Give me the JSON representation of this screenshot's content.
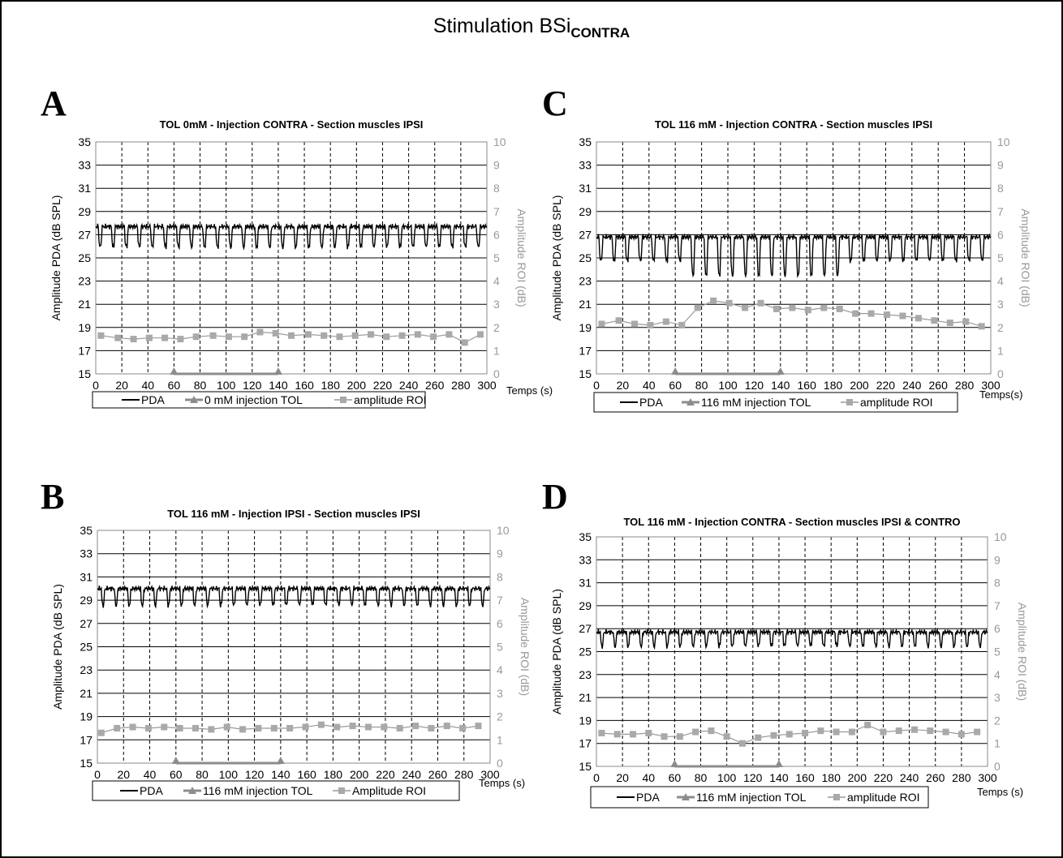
{
  "figure": {
    "title_main": "Stimulation BSi",
    "title_sub": "CONTRA"
  },
  "chart_data": [
    {
      "type": "line",
      "panel_letter": "A",
      "title": "TOL 0mM - Injection CONTRA - Section muscles IPSI",
      "xlabel": "Temps (s)",
      "ylabel_left": "Amplitude PDA (dB SPL)",
      "ylabel_right": "Amplitude ROI (dB)",
      "xlim": [
        0,
        300
      ],
      "xticks": [
        0,
        20,
        40,
        60,
        80,
        100,
        120,
        140,
        160,
        180,
        200,
        220,
        240,
        260,
        280,
        300
      ],
      "ylim_left": [
        15,
        35
      ],
      "yticks_left": [
        15,
        17,
        19,
        21,
        23,
        25,
        27,
        29,
        31,
        33,
        35
      ],
      "ylim_right": [
        0,
        10
      ],
      "yticks_right": [
        0,
        1,
        2,
        3,
        4,
        5,
        6,
        7,
        8,
        9,
        10
      ],
      "legend": [
        "PDA",
        "0 mM injection TOL",
        "amplitude ROI"
      ],
      "pda": {
        "baseline": 27.7,
        "dip": 26.0,
        "period": 10,
        "dip_width": 3.2,
        "offset": 2
      },
      "injection": {
        "x": [
          60,
          140
        ],
        "y": [
          0,
          0
        ]
      },
      "roi": {
        "x": [
          4,
          17,
          29,
          41,
          53,
          65,
          77,
          90,
          102,
          114,
          126,
          138,
          150,
          163,
          175,
          187,
          199,
          211,
          223,
          235,
          247,
          259,
          271,
          283,
          295
        ],
        "y": [
          1.65,
          1.55,
          1.5,
          1.55,
          1.55,
          1.5,
          1.6,
          1.65,
          1.6,
          1.6,
          1.8,
          1.75,
          1.65,
          1.7,
          1.65,
          1.6,
          1.65,
          1.7,
          1.6,
          1.65,
          1.7,
          1.6,
          1.7,
          1.35,
          1.7
        ]
      }
    },
    {
      "type": "line",
      "panel_letter": "B",
      "title": "TOL 116 mM - Injection IPSI - Section muscles IPSI",
      "xlabel": "Temps (s)",
      "ylabel_left": "Amplitude PDA (dB SPL)",
      "ylabel_right": "Amplitude ROI (dB)",
      "xlim": [
        0,
        300
      ],
      "xticks": [
        0,
        20,
        40,
        60,
        80,
        100,
        120,
        140,
        160,
        180,
        200,
        220,
        240,
        260,
        280,
        300
      ],
      "ylim_left": [
        15,
        35
      ],
      "yticks_left": [
        15,
        17,
        19,
        21,
        23,
        25,
        27,
        29,
        31,
        33,
        35
      ],
      "ylim_right": [
        0,
        10
      ],
      "yticks_right": [
        0,
        1,
        2,
        3,
        4,
        5,
        6,
        7,
        8,
        9,
        10
      ],
      "legend": [
        "PDA",
        "116 mM injection TOL",
        "Amplitude ROI"
      ],
      "pda": {
        "baseline": 30.0,
        "dip": 28.6,
        "period": 10,
        "dip_width": 3.0,
        "offset": 3
      },
      "injection": {
        "x": [
          60,
          140
        ],
        "y": [
          0,
          0
        ]
      },
      "roi": {
        "x": [
          3,
          15,
          27,
          39,
          51,
          63,
          75,
          87,
          99,
          111,
          123,
          135,
          147,
          159,
          171,
          183,
          195,
          207,
          219,
          231,
          243,
          255,
          267,
          279,
          291
        ],
        "y": [
          1.3,
          1.5,
          1.55,
          1.5,
          1.55,
          1.5,
          1.5,
          1.45,
          1.55,
          1.45,
          1.5,
          1.5,
          1.5,
          1.55,
          1.65,
          1.55,
          1.6,
          1.55,
          1.55,
          1.5,
          1.6,
          1.5,
          1.6,
          1.5,
          1.6
        ]
      }
    },
    {
      "type": "line",
      "panel_letter": "C",
      "title": "TOL 116 mM - Injection CONTRA - Section muscles IPSI",
      "xlabel": "Temps(s)",
      "ylabel_left": "Amplitude PDA (dB SPL)",
      "ylabel_right": "Amplitude ROI (dB)",
      "xlim": [
        0,
        300
      ],
      "xticks": [
        0,
        20,
        40,
        60,
        80,
        100,
        120,
        140,
        160,
        180,
        200,
        220,
        240,
        260,
        280,
        300
      ],
      "ylim_left": [
        15,
        35
      ],
      "yticks_left": [
        15,
        17,
        19,
        21,
        23,
        25,
        27,
        29,
        31,
        33,
        35
      ],
      "ylim_right": [
        0,
        10
      ],
      "yticks_right": [
        0,
        1,
        2,
        3,
        4,
        5,
        6,
        7,
        8,
        9,
        10
      ],
      "legend": [
        "PDA",
        "116 mM injection TOL",
        "amplitude ROI"
      ],
      "pda": {
        "baseline": 26.8,
        "dip": 24.8,
        "period": 10,
        "dip_width": 3.2,
        "offset": 2,
        "dip_deep": 23.6,
        "deep_from": 70,
        "deep_to": 190
      },
      "injection": {
        "x": [
          60,
          140
        ],
        "y": [
          0,
          0
        ]
      },
      "roi": {
        "x": [
          4,
          17,
          29,
          41,
          53,
          65,
          77,
          89,
          101,
          113,
          125,
          137,
          149,
          161,
          173,
          185,
          197,
          209,
          221,
          233,
          245,
          257,
          269,
          281,
          293
        ],
        "y": [
          2.15,
          2.3,
          2.15,
          2.1,
          2.25,
          2.1,
          2.85,
          3.15,
          3.05,
          2.85,
          3.05,
          2.8,
          2.85,
          2.75,
          2.85,
          2.8,
          2.6,
          2.6,
          2.55,
          2.5,
          2.4,
          2.3,
          2.2,
          2.25,
          2.05
        ]
      }
    },
    {
      "type": "line",
      "panel_letter": "D",
      "title": "TOL 116 mM - Injection CONTRA - Section muscles IPSI & CONTRO",
      "xlabel": "Temps (s)",
      "ylabel_left": "Amplitude PDA (dB SPL)",
      "ylabel_right": "Amplitude ROI (dB)",
      "xlim": [
        0,
        300
      ],
      "xticks": [
        0,
        20,
        40,
        60,
        80,
        100,
        120,
        140,
        160,
        180,
        200,
        220,
        240,
        260,
        280,
        300
      ],
      "ylim_left": [
        15,
        35
      ],
      "yticks_left": [
        15,
        17,
        19,
        21,
        23,
        25,
        27,
        29,
        31,
        33,
        35
      ],
      "ylim_right": [
        0,
        10
      ],
      "yticks_right": [
        0,
        1,
        2,
        3,
        4,
        5,
        6,
        7,
        8,
        9,
        10
      ],
      "legend": [
        "PDA",
        "116 mM injection TOL",
        "amplitude ROI"
      ],
      "pda": {
        "baseline": 26.7,
        "dip": 25.5,
        "period": 10,
        "dip_width": 3.0,
        "offset": 3
      },
      "injection": {
        "x": [
          60,
          140
        ],
        "y": [
          0,
          0
        ]
      },
      "roi": {
        "x": [
          4,
          16,
          28,
          40,
          52,
          64,
          76,
          88,
          100,
          112,
          124,
          136,
          148,
          160,
          172,
          184,
          196,
          208,
          220,
          232,
          244,
          256,
          268,
          280,
          292
        ],
        "y": [
          1.45,
          1.4,
          1.4,
          1.45,
          1.3,
          1.3,
          1.5,
          1.55,
          1.3,
          1.0,
          1.25,
          1.35,
          1.4,
          1.45,
          1.55,
          1.5,
          1.5,
          1.8,
          1.5,
          1.55,
          1.6,
          1.55,
          1.5,
          1.4,
          1.5
        ]
      }
    }
  ]
}
